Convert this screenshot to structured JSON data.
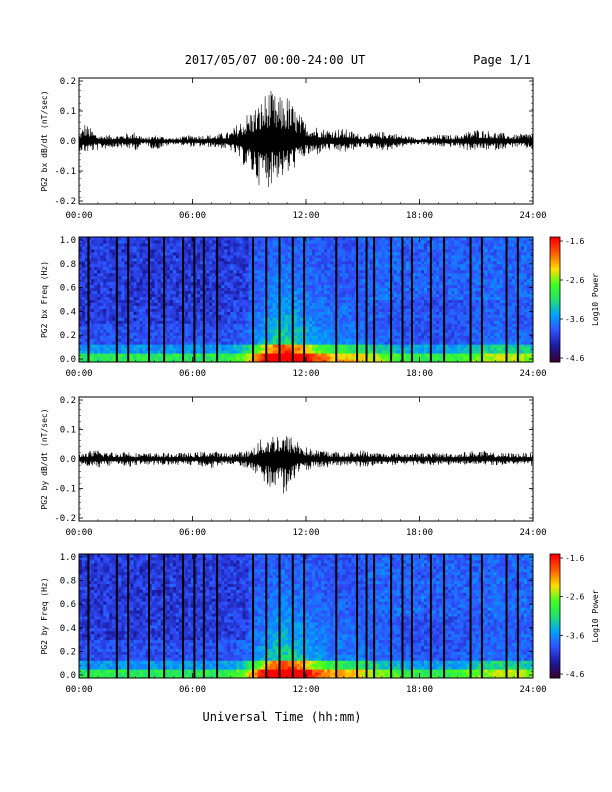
{
  "header": {
    "title": "2017/05/07  00:00-24:00 UT",
    "page": "Page 1/1"
  },
  "footer": {
    "xlabel": "Universal Time (hh:mm)"
  },
  "x_ticks": [
    "00:00",
    "06:00",
    "12:00",
    "18:00",
    "24:00"
  ],
  "colorbar_ticks": [
    "-1.6",
    "-2.6",
    "-3.6",
    "-4.6"
  ],
  "colorbar_label": "Log10 Power",
  "colormap": [
    "#3a0030",
    "#1a1aa0",
    "#3050ff",
    "#00a0ff",
    "#20e070",
    "#40ff20",
    "#ffe000",
    "#ff6000",
    "#ff0000"
  ],
  "chart_data": [
    {
      "type": "line",
      "ylabel": "PG2 bx dB/dt (nT/sec)",
      "xlim": [
        0,
        24
      ],
      "ylim": [
        -0.2,
        0.2
      ],
      "yticks": [
        "0.2",
        "0.1",
        "0.0",
        "-0.1",
        "-0.2"
      ],
      "envelope": {
        "x": [
          0,
          0.3,
          1,
          2,
          3,
          3.5,
          4,
          5,
          6,
          7,
          8,
          9,
          9.5,
          10,
          10.5,
          11,
          11.5,
          12,
          12.5,
          13,
          14,
          15,
          16,
          16.5,
          17,
          18,
          19,
          20,
          20.5,
          21,
          22,
          23,
          24
        ],
        "upper": [
          0.02,
          0.06,
          0.02,
          0.02,
          0.03,
          0.01,
          0.02,
          0.01,
          0.02,
          0.02,
          0.03,
          0.1,
          0.12,
          0.17,
          0.14,
          0.15,
          0.1,
          0.06,
          0.05,
          0.04,
          0.04,
          0.02,
          0.03,
          0.03,
          0.02,
          0.01,
          0.02,
          0.02,
          0.03,
          0.04,
          0.03,
          0.02,
          0.03
        ],
        "lower": [
          -0.03,
          -0.04,
          -0.03,
          -0.02,
          -0.03,
          -0.01,
          -0.03,
          -0.01,
          -0.02,
          -0.02,
          -0.03,
          -0.1,
          -0.14,
          -0.15,
          -0.12,
          -0.12,
          -0.08,
          -0.05,
          -0.05,
          -0.03,
          -0.04,
          -0.02,
          -0.03,
          -0.03,
          -0.02,
          -0.01,
          -0.02,
          -0.02,
          -0.03,
          -0.03,
          -0.03,
          -0.02,
          -0.03
        ]
      }
    },
    {
      "type": "heatmap",
      "ylabel": "PG2 bx Freq (Hz)",
      "xlim": [
        0,
        24
      ],
      "ylim": [
        0,
        1
      ],
      "yticks": [
        "1.0",
        "0.8",
        "0.6",
        "0.4",
        "0.2",
        "0.0"
      ],
      "zlim": [
        -4.6,
        -1.6
      ],
      "data_gaps_hours": [
        0.5,
        2,
        2.6,
        3.7,
        4.5,
        5.5,
        6.1,
        6.6,
        7.3,
        9.2,
        9.9,
        10.6,
        11.3,
        11.9,
        13.6,
        14.7,
        15.2,
        15.6,
        16.5,
        17.1,
        17.6,
        18.6,
        19.3,
        20.7,
        21.3,
        22.6,
        23.2
      ]
    },
    {
      "type": "line",
      "ylabel": "PG2 by dB/dt (nT/sec)",
      "xlim": [
        0,
        24
      ],
      "ylim": [
        -0.2,
        0.2
      ],
      "yticks": [
        "0.2",
        "0.1",
        "0.0",
        "-0.1",
        "-0.2"
      ],
      "envelope": {
        "x": [
          0,
          1,
          2,
          2.5,
          3,
          3.5,
          4,
          5,
          6,
          7,
          7.5,
          8,
          9,
          9.5,
          10,
          10.5,
          11,
          11.5,
          12,
          12.5,
          13,
          14,
          15,
          16,
          17,
          18,
          19,
          20,
          21,
          22,
          23,
          24
        ],
        "upper": [
          0.02,
          0.03,
          0.02,
          0.03,
          0.02,
          0.02,
          0.02,
          0.02,
          0.02,
          0.03,
          0.02,
          0.02,
          0.03,
          0.06,
          0.08,
          0.09,
          0.08,
          0.07,
          0.04,
          0.03,
          0.03,
          0.02,
          0.03,
          0.02,
          0.02,
          0.02,
          0.02,
          0.02,
          0.03,
          0.02,
          0.02,
          0.02
        ],
        "lower": [
          -0.02,
          -0.03,
          -0.02,
          -0.03,
          -0.02,
          -0.02,
          -0.02,
          -0.02,
          -0.02,
          -0.03,
          -0.02,
          -0.02,
          -0.03,
          -0.06,
          -0.09,
          -0.1,
          -0.13,
          -0.06,
          -0.04,
          -0.03,
          -0.03,
          -0.02,
          -0.03,
          -0.02,
          -0.02,
          -0.02,
          -0.02,
          -0.02,
          -0.02,
          -0.02,
          -0.02,
          -0.02
        ]
      }
    },
    {
      "type": "heatmap",
      "ylabel": "PG2 by Freq (Hz)",
      "xlim": [
        0,
        24
      ],
      "ylim": [
        0,
        1
      ],
      "yticks": [
        "1.0",
        "0.8",
        "0.6",
        "0.4",
        "0.2",
        "0.0"
      ],
      "zlim": [
        -4.6,
        -1.6
      ],
      "data_gaps_hours": [
        0.5,
        2,
        2.6,
        3.7,
        4.5,
        5.5,
        6.1,
        6.6,
        7.3,
        9.2,
        9.9,
        10.6,
        11.3,
        11.9,
        13.6,
        14.7,
        15.2,
        15.6,
        16.5,
        17.1,
        17.6,
        18.6,
        19.3,
        20.7,
        21.3,
        22.6,
        23.2
      ]
    }
  ]
}
